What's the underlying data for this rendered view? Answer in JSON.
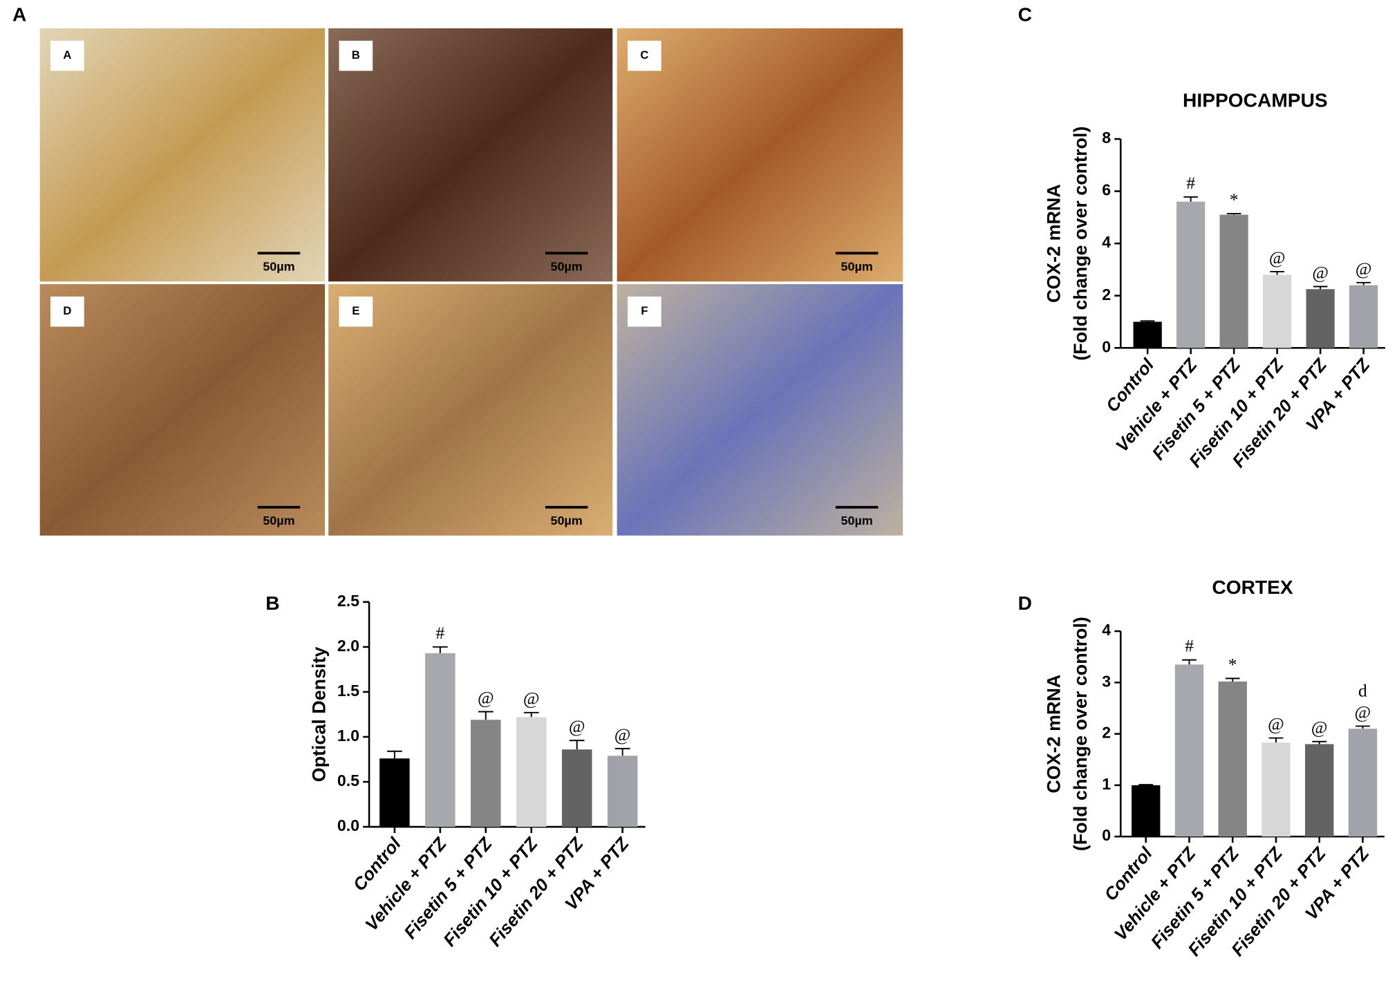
{
  "figure": {
    "panel_labels": [
      "A",
      "B",
      "C",
      "D"
    ],
    "images": [
      {
        "label": "A",
        "scale": "50µm"
      },
      {
        "label": "B",
        "scale": "50µm"
      },
      {
        "label": "C",
        "scale": "50µm"
      },
      {
        "label": "D",
        "scale": "50µm"
      },
      {
        "label": "E",
        "scale": "50µm"
      },
      {
        "label": "F",
        "scale": "50µm"
      }
    ]
  },
  "chart_data": [
    {
      "type": "bar",
      "ylabel": [
        "Optical Density"
      ],
      "categories": [
        "Control",
        "Vehicle + PTZ",
        "Fisetin 5 + PTZ",
        "Fisetin 10 + PTZ",
        "Fisetin 20 + PTZ",
        "VPA + PTZ"
      ],
      "values": [
        0.76,
        1.93,
        1.19,
        1.22,
        0.86,
        0.79
      ],
      "errors": [
        0.08,
        0.07,
        0.09,
        0.05,
        0.1,
        0.08
      ],
      "annotations": [
        null,
        [
          "#"
        ],
        [
          "@"
        ],
        [
          "@"
        ],
        [
          "@"
        ],
        [
          "@"
        ]
      ],
      "colors": [
        "#000000",
        "#a7a7ae",
        "#858585",
        "#d7d7d7",
        "#636363",
        "#a2a2aa"
      ],
      "ylim": [
        0,
        2.5
      ],
      "yticks": [
        {
          "value": 0,
          "label": "0.0"
        },
        0.5,
        {
          "value": 1,
          "label": "1.0"
        },
        1.5,
        {
          "value": 2,
          "label": "2.0"
        },
        2.5
      ]
    },
    {
      "type": "bar",
      "title": "HIPPOCAMPUS",
      "ylabel": [
        "COX-2 mRNA",
        "(Fold change over control)"
      ],
      "categories": [
        "Control",
        "Vehicle + PTZ",
        "Fisetin 5 + PTZ",
        "Fisetin 10 + PTZ",
        "Fisetin 20 + PTZ",
        "VPA + PTZ"
      ],
      "values": [
        1.0,
        5.6,
        5.1,
        2.8,
        2.25,
        2.4
      ],
      "errors": [
        0.03,
        0.18,
        0.04,
        0.12,
        0.1,
        0.1
      ],
      "annotations": [
        null,
        [
          "#"
        ],
        [
          "*"
        ],
        [
          "@"
        ],
        [
          "@"
        ],
        [
          "@"
        ]
      ],
      "colors": [
        "#000000",
        "#a7a7ae",
        "#858585",
        "#d7d7d7",
        "#636363",
        "#a2a2aa"
      ],
      "ylim": [
        0,
        8
      ],
      "yticks": [
        0,
        2,
        4,
        6,
        8
      ]
    },
    {
      "type": "bar",
      "title": "CORTEX",
      "ylabel": [
        "COX-2 mRNA",
        "(Fold change over control)"
      ],
      "categories": [
        "Control",
        "Vehicle + PTZ",
        "Fisetin 5 + PTZ",
        "Fisetin 10 + PTZ",
        "Fisetin 20 + PTZ",
        "VPA + PTZ"
      ],
      "values": [
        1.0,
        3.35,
        3.02,
        1.83,
        1.8,
        2.1
      ],
      "errors": [
        0.01,
        0.09,
        0.06,
        0.09,
        0.05,
        0.05
      ],
      "annotations": [
        null,
        [
          "#"
        ],
        [
          "*"
        ],
        [
          "@"
        ],
        [
          "@"
        ],
        [
          "d",
          "@"
        ]
      ],
      "colors": [
        "#000000",
        "#a7a7ae",
        "#858585",
        "#d7d7d7",
        "#636363",
        "#a2a2aa"
      ],
      "ylim": [
        0,
        4
      ],
      "yticks": [
        0,
        1,
        2,
        3,
        4
      ]
    }
  ]
}
